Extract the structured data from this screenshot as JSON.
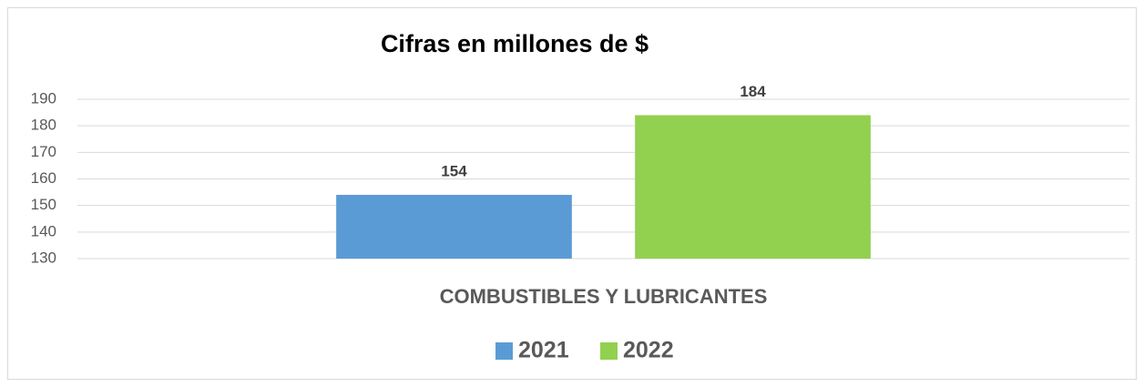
{
  "chart_data": {
    "type": "bar",
    "title": "Cifras en millones de $",
    "categories": [
      "COMBUSTIBLES Y LUBRICANTES"
    ],
    "series": [
      {
        "name": "2021",
        "color": "#5b9bd5",
        "values": [
          154
        ]
      },
      {
        "name": "2022",
        "color": "#92d050",
        "values": [
          184
        ]
      }
    ],
    "ylim": [
      130,
      190
    ],
    "yticks": [
      130,
      140,
      150,
      160,
      170,
      180,
      190
    ],
    "grid": true,
    "legend": "bottom"
  }
}
